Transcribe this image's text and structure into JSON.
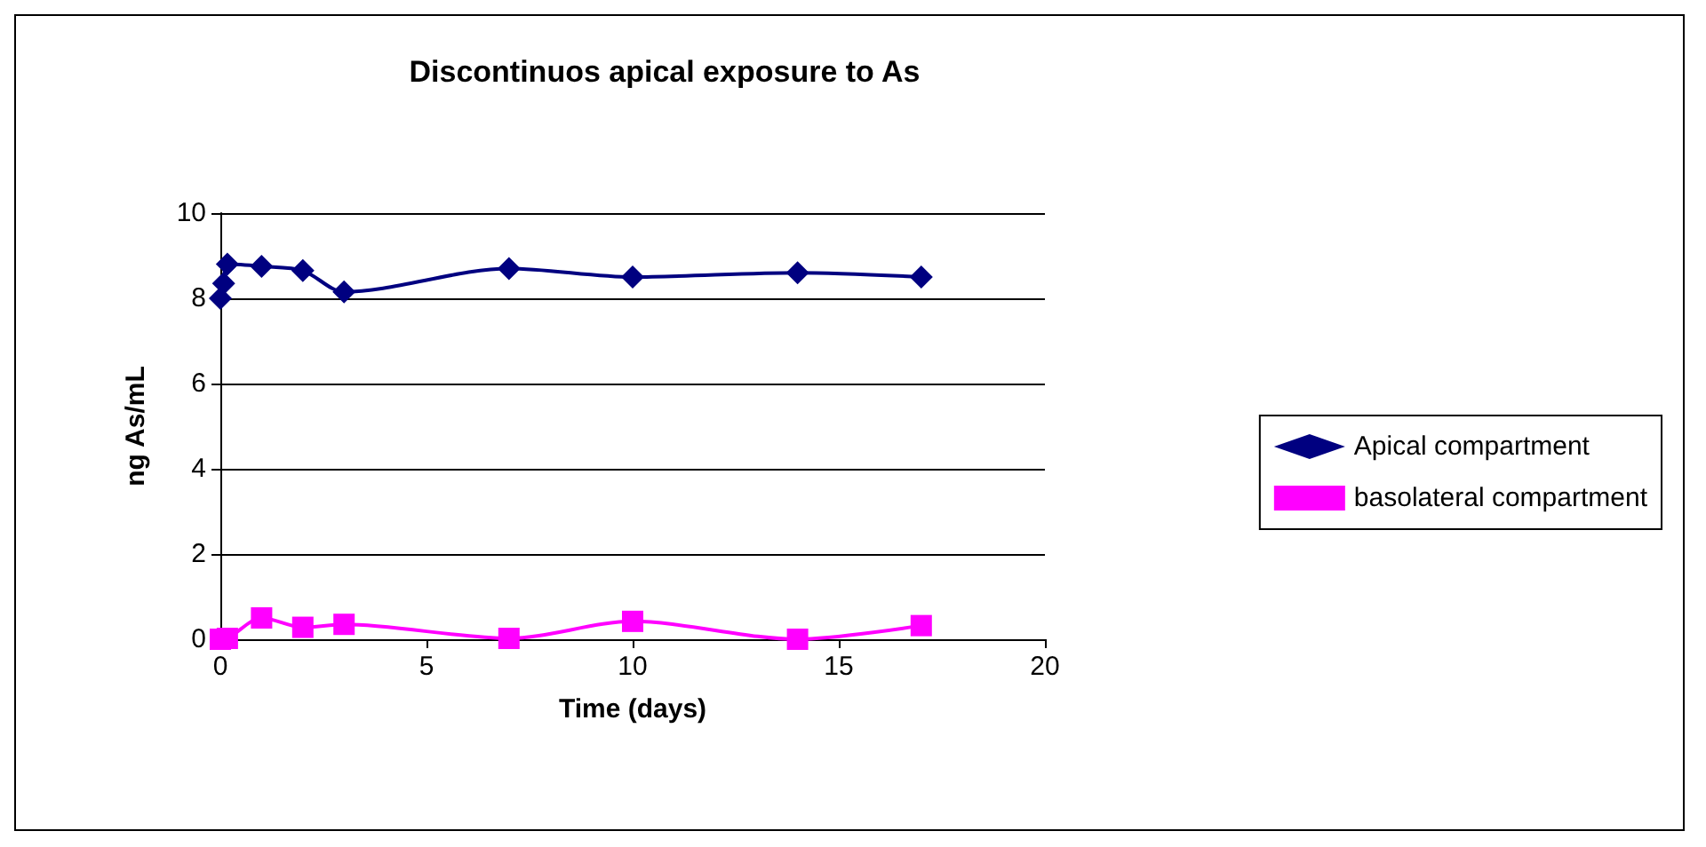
{
  "chart_data": {
    "type": "line",
    "title": "Discontinuos apical exposure to As",
    "xlabel": "Time (days)",
    "ylabel": "ng As/mL",
    "xlim": [
      0,
      20
    ],
    "xticks": [
      0,
      5,
      10,
      15,
      20
    ],
    "ylim": [
      0,
      10
    ],
    "yticks": [
      0,
      2,
      4,
      6,
      8,
      10
    ],
    "grid": "y",
    "legend": "right",
    "series": [
      {
        "name": "Apical compartment",
        "color": "#000080",
        "marker": "diamond",
        "x": [
          0,
          0.08,
          0.17,
          1,
          2,
          3,
          7,
          10,
          14,
          17
        ],
        "values": [
          8.0,
          8.35,
          8.8,
          8.75,
          8.65,
          8.15,
          8.7,
          8.5,
          8.6,
          8.5
        ]
      },
      {
        "name": "basolateral compartment",
        "color": "#ff00ff",
        "marker": "square",
        "x": [
          0,
          0.17,
          1,
          2,
          3,
          7,
          10,
          14,
          17
        ],
        "values": [
          0,
          0.02,
          0.5,
          0.28,
          0.35,
          0.02,
          0.42,
          0,
          0.32
        ]
      }
    ]
  }
}
